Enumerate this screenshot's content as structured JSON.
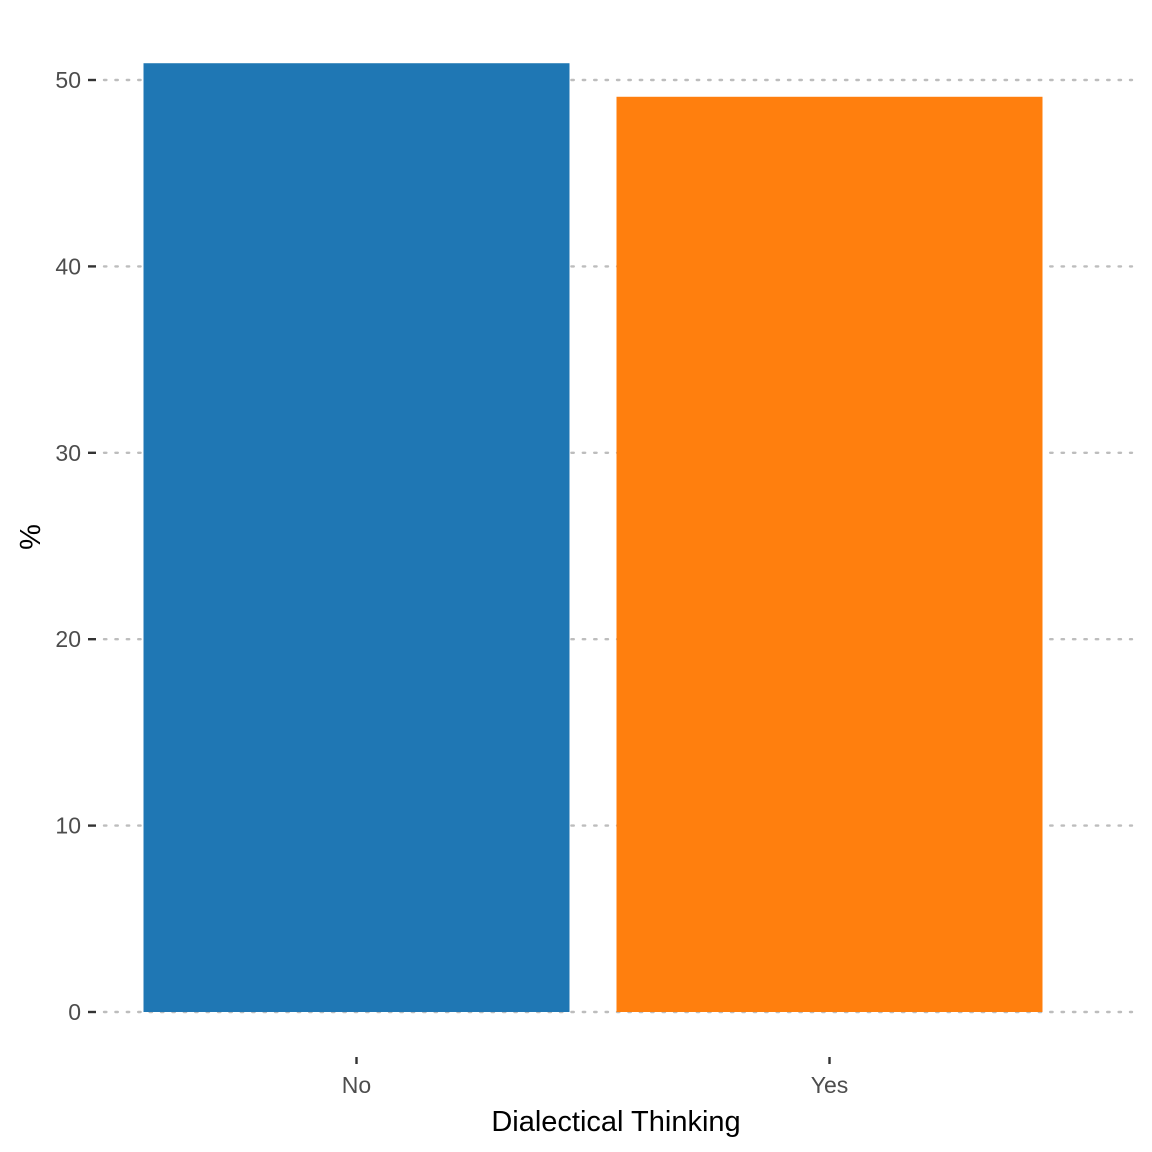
{
  "chart_data": {
    "type": "bar",
    "categories": [
      "No",
      "Yes"
    ],
    "values": [
      50.9,
      49.1
    ],
    "colors": [
      "#1f77b4",
      "#ff7f0e"
    ],
    "title": "",
    "xlabel": "Dialectical Thinking",
    "ylabel": "%",
    "ylim": [
      0,
      51.5
    ],
    "yticks": [
      0,
      10,
      20,
      30,
      40,
      50
    ],
    "ytick_labels": [
      "0",
      "10",
      "20",
      "30",
      "40",
      "50"
    ],
    "grid": {
      "horizontal": true,
      "vertical": false,
      "style": "dotted",
      "color": "#bdbdbd"
    },
    "legend": "none"
  }
}
